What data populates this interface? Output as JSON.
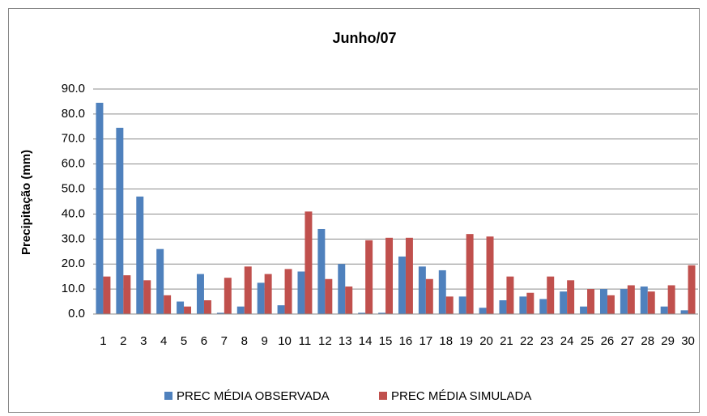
{
  "chart_data": {
    "type": "bar",
    "title": "Junho/07",
    "ylabel": "Precipitação (mm)",
    "categories": [
      "1",
      "2",
      "3",
      "4",
      "5",
      "6",
      "7",
      "8",
      "9",
      "10",
      "11",
      "12",
      "13",
      "14",
      "15",
      "16",
      "17",
      "18",
      "19",
      "20",
      "21",
      "22",
      "23",
      "24",
      "25",
      "26",
      "27",
      "28",
      "29",
      "30"
    ],
    "series": [
      {
        "name": "PREC MÉDIA OBSERVADA",
        "color": "#4f81bd",
        "values": [
          84.5,
          74.5,
          47,
          26,
          5,
          16,
          0.5,
          3,
          12.5,
          3.5,
          17,
          34,
          20,
          0.5,
          0.5,
          23,
          19,
          17.5,
          7,
          2.5,
          5.5,
          7,
          6,
          9,
          3,
          10,
          10,
          11,
          3,
          1.5
        ]
      },
      {
        "name": "PREC MÉDIA SIMULADA",
        "color": "#c0504d",
        "values": [
          15,
          15.5,
          13.5,
          7.5,
          3,
          5.5,
          14.5,
          19,
          16,
          18,
          41,
          14,
          11,
          29.5,
          30.5,
          30.5,
          14,
          7,
          32,
          31,
          15,
          8.5,
          15,
          13.5,
          10,
          7.5,
          11.5,
          9,
          11.5,
          19.5
        ]
      }
    ],
    "ylim": [
      0,
      90
    ],
    "yticks": [
      {
        "value": 0,
        "label": "0.0"
      },
      {
        "value": 10,
        "label": "10.0"
      },
      {
        "value": 20,
        "label": "20.0"
      },
      {
        "value": 30,
        "label": "30.0"
      },
      {
        "value": 40,
        "label": "40.0"
      },
      {
        "value": 50,
        "label": "50.0"
      },
      {
        "value": 60,
        "label": "60.0"
      },
      {
        "value": 70,
        "label": "70.0"
      },
      {
        "value": 80,
        "label": "80.0"
      },
      {
        "value": 90,
        "label": "90.0"
      }
    ],
    "grid": true,
    "legend": "bottom"
  }
}
